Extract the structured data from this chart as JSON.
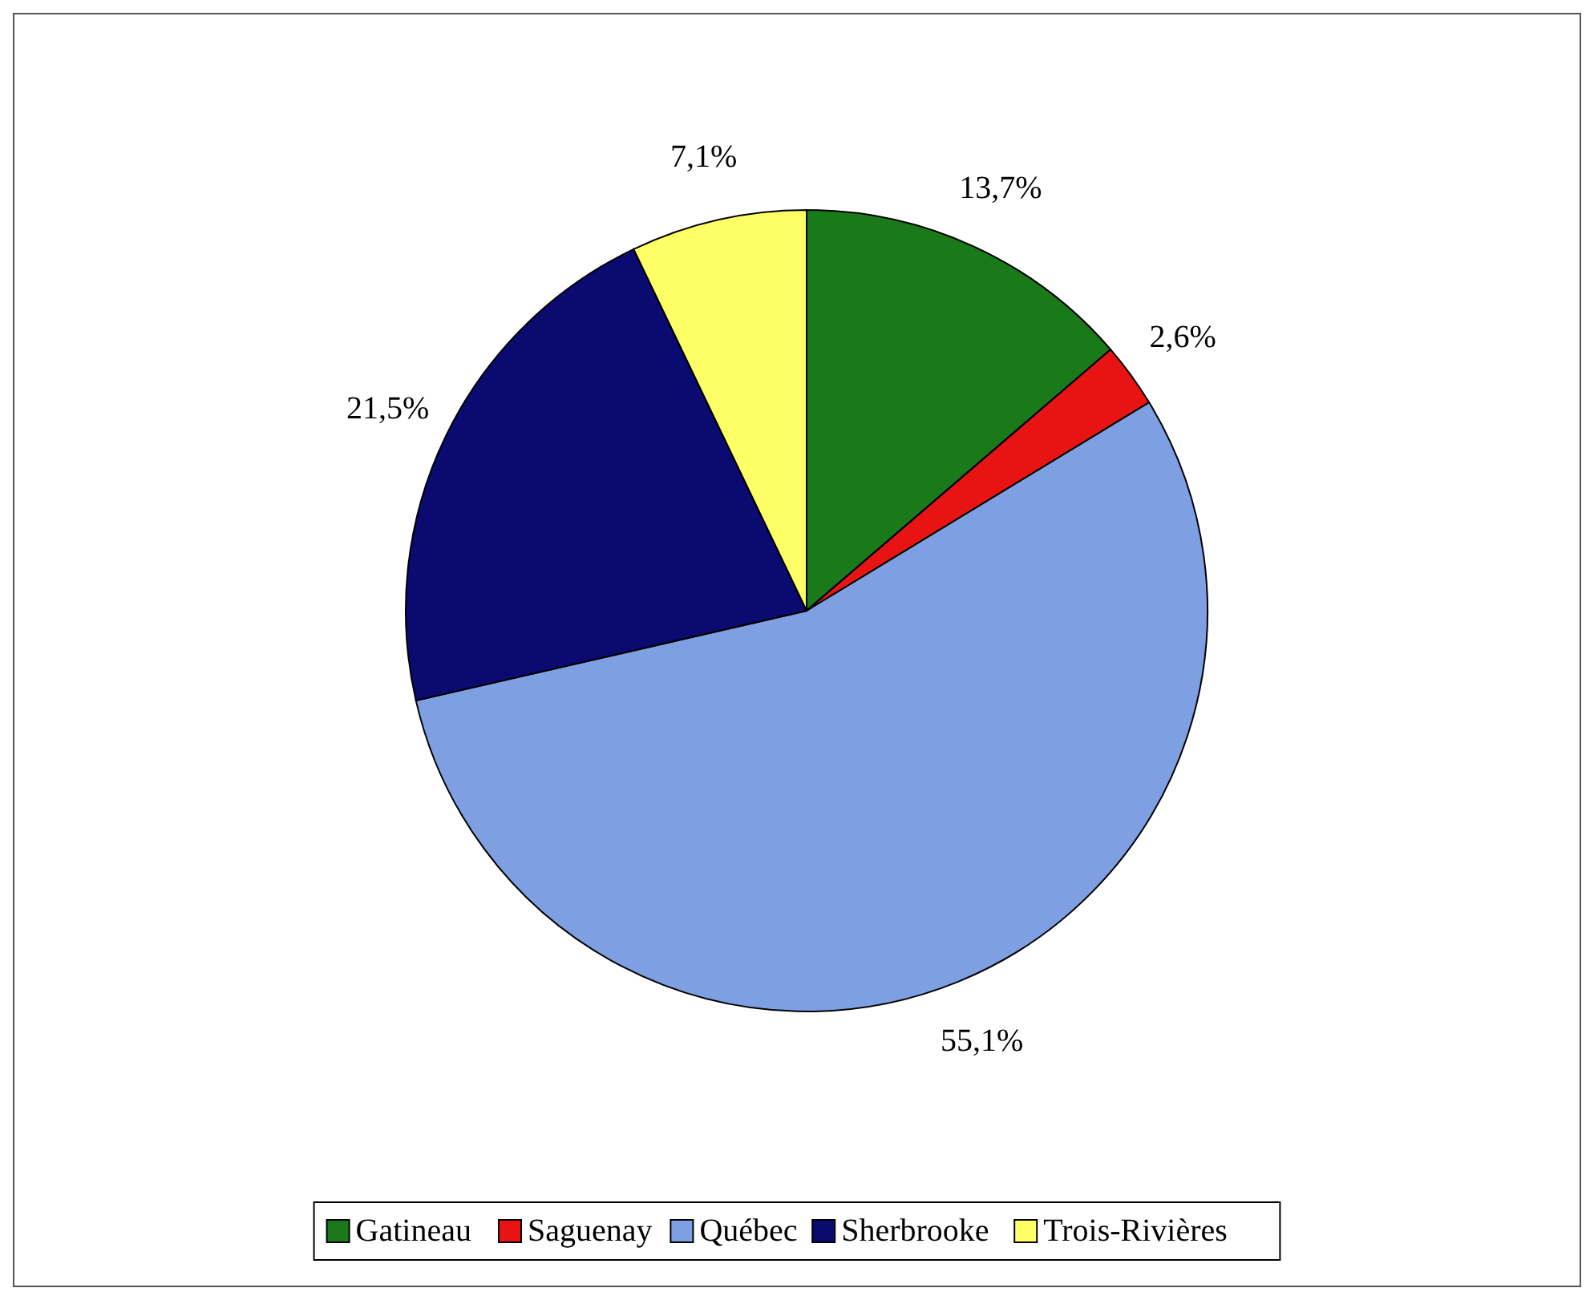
{
  "chart_data": {
    "type": "pie",
    "categories": [
      "Gatineau",
      "Saguenay",
      "Québec",
      "Sherbrooke",
      "Trois-Rivières"
    ],
    "values": [
      13.7,
      2.6,
      55.1,
      21.5,
      7.1
    ],
    "colors": [
      "#1a7a1a",
      "#e81414",
      "#7f9fe3",
      "#0a0a70",
      "#ffff66"
    ],
    "value_labels": [
      "13,7%",
      "2,6%",
      "55,1%",
      "21,5%",
      "7,1%"
    ],
    "legend": "bottom"
  }
}
